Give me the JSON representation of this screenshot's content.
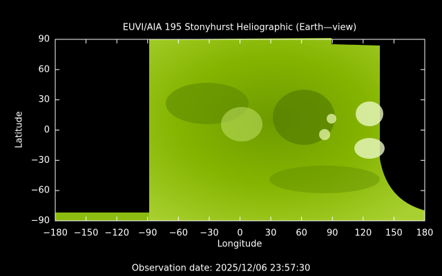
{
  "chart_data": {
    "type": "image",
    "title": "EUVI/AIA 195 Stonyhurst Heliographic (Earth—view)",
    "x_label": "Longitude",
    "y_label": "Latitude",
    "footer": "Observation date: 2025/12/06 23:57:30",
    "xlim": [
      -180,
      180
    ],
    "ylim": [
      -90,
      90
    ],
    "xticks": [
      {
        "value": -180,
        "label": "−180"
      },
      {
        "value": -150,
        "label": "−150"
      },
      {
        "value": -120,
        "label": "−120"
      },
      {
        "value": -90,
        "label": "−90"
      },
      {
        "value": -60,
        "label": "−60"
      },
      {
        "value": -30,
        "label": "−30"
      },
      0,
      30,
      60,
      90,
      120,
      150,
      180
    ],
    "yticks": [
      {
        "value": -90,
        "label": "−90"
      },
      {
        "value": -60,
        "label": "−60"
      },
      {
        "value": -30,
        "label": "−30"
      },
      0,
      30,
      60,
      90
    ]
  }
}
